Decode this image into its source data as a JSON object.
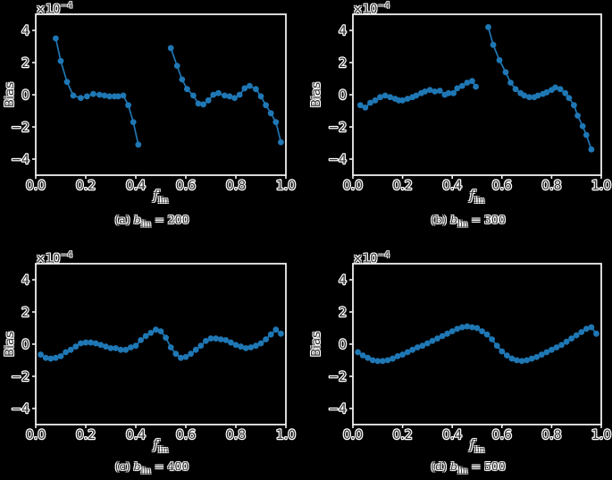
{
  "figure": {
    "background": "#000000",
    "accent_blue": "#1f77b4",
    "spine_color": "#f0f0f0",
    "text_color": "#2f2f2f",
    "halo_color": "#ffffff"
  },
  "chart_data": [
    {
      "id": "a",
      "type": "line",
      "caption_index": "(a)",
      "caption_var": "b",
      "caption_sub": "lin",
      "caption_value": "= 200",
      "xlabel_var": "f",
      "xlabel_sub": "lin",
      "ylabel": "Bias",
      "offset_base": "×10",
      "offset_exp": "−4",
      "units": "×10⁻⁴",
      "xlim": [
        0,
        1
      ],
      "ylim": [
        -5,
        5
      ],
      "xtick_vals": [
        0,
        0.2,
        0.4,
        0.6,
        0.8,
        1.0
      ],
      "xticks": [
        "0.0",
        "0.2",
        "0.4",
        "0.6",
        "0.8",
        "1.0"
      ],
      "ytick_vals": [
        -4,
        -2,
        0,
        2,
        4
      ],
      "yticks": [
        "−4",
        "−2",
        "0",
        "2",
        "4"
      ],
      "grid": false,
      "series": [
        {
          "name": "segment-1",
          "x": [
            0.08,
            0.1,
            0.125,
            0.15,
            0.18,
            0.205,
            0.23,
            0.255,
            0.275,
            0.295,
            0.315,
            0.33,
            0.35,
            0.37,
            0.39,
            0.41
          ],
          "y": [
            3.5,
            2.1,
            0.8,
            -0.05,
            -0.2,
            -0.1,
            0.05,
            0.0,
            -0.05,
            -0.1,
            -0.1,
            -0.1,
            -0.05,
            -0.65,
            -1.7,
            -3.1
          ]
        },
        {
          "name": "segment-2",
          "x": [
            0.54,
            0.565,
            0.585,
            0.605,
            0.63,
            0.65,
            0.67,
            0.69,
            0.71,
            0.73,
            0.755,
            0.775,
            0.795,
            0.815,
            0.835,
            0.855,
            0.88,
            0.9,
            0.92,
            0.94,
            0.96,
            0.98
          ],
          "y": [
            2.9,
            1.8,
            0.95,
            0.35,
            -0.05,
            -0.55,
            -0.6,
            -0.35,
            0.0,
            0.1,
            -0.05,
            -0.1,
            -0.2,
            0.0,
            0.4,
            0.55,
            0.35,
            -0.1,
            -0.65,
            -1.15,
            -1.7,
            -2.95
          ]
        }
      ]
    },
    {
      "id": "b",
      "type": "line",
      "caption_index": "(b)",
      "caption_var": "b",
      "caption_sub": "lin",
      "caption_value": "= 300",
      "xlabel_var": "f",
      "xlabel_sub": "lin",
      "ylabel": "Bias",
      "offset_base": "×10",
      "offset_exp": "−4",
      "units": "×10⁻⁴",
      "xlim": [
        0,
        1
      ],
      "ylim": [
        -5,
        5
      ],
      "xtick_vals": [
        0,
        0.2,
        0.4,
        0.6,
        0.8,
        1.0
      ],
      "xticks": [
        "0.0",
        "0.2",
        "0.4",
        "0.6",
        "0.8",
        "1.0"
      ],
      "ytick_vals": [
        -4,
        -2,
        0,
        2,
        4
      ],
      "yticks": [
        "−4",
        "−2",
        "0",
        "2",
        "4"
      ],
      "grid": false,
      "series": [
        {
          "name": "segment-1",
          "x": [
            0.03,
            0.05,
            0.07,
            0.09,
            0.11,
            0.13,
            0.15,
            0.17,
            0.185,
            0.2,
            0.22,
            0.24,
            0.255,
            0.275,
            0.29,
            0.31,
            0.33,
            0.35,
            0.37,
            0.385,
            0.405,
            0.42,
            0.44,
            0.46,
            0.48,
            0.495
          ],
          "y": [
            -0.65,
            -0.8,
            -0.5,
            -0.35,
            -0.15,
            -0.05,
            -0.15,
            -0.25,
            -0.35,
            -0.35,
            -0.25,
            -0.15,
            -0.05,
            0.1,
            0.2,
            0.3,
            0.2,
            0.25,
            0.0,
            0.1,
            0.1,
            0.4,
            0.55,
            0.75,
            0.85,
            0.5
          ]
        },
        {
          "name": "segment-2",
          "x": [
            0.545,
            0.565,
            0.59,
            0.615,
            0.635,
            0.655,
            0.675,
            0.69,
            0.71,
            0.73,
            0.745,
            0.765,
            0.78,
            0.8,
            0.815,
            0.835,
            0.855,
            0.87,
            0.89,
            0.905,
            0.925,
            0.94,
            0.96
          ],
          "y": [
            4.2,
            3.1,
            2.15,
            1.4,
            0.75,
            0.35,
            0.1,
            -0.05,
            -0.15,
            -0.15,
            -0.05,
            0.05,
            0.15,
            0.3,
            0.45,
            0.35,
            0.1,
            -0.2,
            -0.65,
            -1.3,
            -1.95,
            -2.5,
            -3.4
          ]
        }
      ]
    },
    {
      "id": "c",
      "type": "line",
      "caption_index": "(c)",
      "caption_var": "b",
      "caption_sub": "lin",
      "caption_value": "= 400",
      "xlabel_var": "f",
      "xlabel_sub": "lin",
      "ylabel": "Bias",
      "offset_base": "×10",
      "offset_exp": "−4",
      "units": "×10⁻⁴",
      "xlim": [
        0,
        1
      ],
      "ylim": [
        -5,
        5
      ],
      "xtick_vals": [
        0,
        0.2,
        0.4,
        0.6,
        0.8,
        1.0
      ],
      "xticks": [
        "0.0",
        "0.2",
        "0.4",
        "0.6",
        "0.8",
        "1.0"
      ],
      "ytick_vals": [
        -4,
        -2,
        0,
        2,
        4
      ],
      "yticks": [
        "−4",
        "−2",
        "0",
        "2",
        "4"
      ],
      "grid": false,
      "series": [
        {
          "name": "series-1",
          "x": [
            0.02,
            0.04,
            0.06,
            0.08,
            0.1,
            0.12,
            0.14,
            0.16,
            0.18,
            0.2,
            0.22,
            0.24,
            0.26,
            0.28,
            0.3,
            0.32,
            0.34,
            0.36,
            0.38,
            0.4,
            0.42,
            0.44,
            0.46,
            0.48,
            0.5,
            0.52,
            0.54,
            0.56,
            0.58,
            0.6,
            0.62,
            0.64,
            0.66,
            0.68,
            0.7,
            0.72,
            0.74,
            0.76,
            0.78,
            0.8,
            0.82,
            0.84,
            0.86,
            0.88,
            0.9,
            0.92,
            0.94,
            0.96,
            0.98
          ],
          "y": [
            -0.65,
            -0.85,
            -0.9,
            -0.85,
            -0.75,
            -0.5,
            -0.35,
            -0.15,
            0.05,
            0.1,
            0.1,
            0.05,
            -0.05,
            -0.15,
            -0.25,
            -0.25,
            -0.35,
            -0.35,
            -0.2,
            -0.1,
            0.25,
            0.5,
            0.7,
            0.9,
            0.8,
            0.4,
            -0.2,
            -0.6,
            -0.85,
            -0.8,
            -0.6,
            -0.35,
            -0.1,
            0.2,
            0.35,
            0.35,
            0.3,
            0.25,
            0.1,
            -0.05,
            -0.15,
            -0.25,
            -0.2,
            -0.1,
            0.05,
            0.3,
            0.6,
            0.9,
            0.65
          ]
        }
      ]
    },
    {
      "id": "d",
      "type": "line",
      "caption_index": "(d)",
      "caption_var": "b",
      "caption_sub": "lin",
      "caption_value": "= 500",
      "xlabel_var": "f",
      "xlabel_sub": "lin",
      "ylabel": "Bias",
      "offset_base": "×10",
      "offset_exp": "−4",
      "units": "×10⁻⁴",
      "xlim": [
        0,
        1
      ],
      "ylim": [
        -5,
        5
      ],
      "xtick_vals": [
        0,
        0.2,
        0.4,
        0.6,
        0.8,
        1.0
      ],
      "xticks": [
        "0.0",
        "0.2",
        "0.4",
        "0.6",
        "0.8",
        "1.0"
      ],
      "ytick_vals": [
        -4,
        -2,
        0,
        2,
        4
      ],
      "yticks": [
        "−4",
        "−2",
        "0",
        "2",
        "4"
      ],
      "grid": false,
      "series": [
        {
          "name": "series-1",
          "x": [
            0.02,
            0.04,
            0.06,
            0.08,
            0.1,
            0.12,
            0.14,
            0.16,
            0.18,
            0.2,
            0.22,
            0.24,
            0.26,
            0.28,
            0.3,
            0.32,
            0.34,
            0.36,
            0.38,
            0.4,
            0.42,
            0.44,
            0.46,
            0.48,
            0.5,
            0.52,
            0.54,
            0.56,
            0.58,
            0.6,
            0.62,
            0.64,
            0.66,
            0.68,
            0.7,
            0.72,
            0.74,
            0.76,
            0.78,
            0.8,
            0.82,
            0.84,
            0.86,
            0.88,
            0.9,
            0.92,
            0.94,
            0.96,
            0.98
          ],
          "y": [
            -0.5,
            -0.7,
            -0.85,
            -1.0,
            -1.05,
            -1.05,
            -1.0,
            -0.9,
            -0.75,
            -0.65,
            -0.5,
            -0.35,
            -0.2,
            -0.1,
            0.05,
            0.2,
            0.35,
            0.5,
            0.65,
            0.8,
            0.95,
            1.05,
            1.1,
            1.05,
            1.0,
            0.8,
            0.6,
            0.3,
            -0.1,
            -0.45,
            -0.7,
            -0.9,
            -1.0,
            -1.05,
            -1.0,
            -0.9,
            -0.8,
            -0.65,
            -0.5,
            -0.35,
            -0.2,
            -0.05,
            0.15,
            0.35,
            0.55,
            0.75,
            0.95,
            1.05,
            0.65
          ]
        }
      ]
    }
  ]
}
